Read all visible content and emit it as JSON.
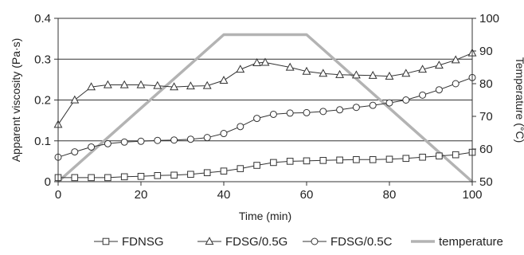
{
  "chart_data": {
    "type": "line",
    "xlabel": "Time (min)",
    "ylabel": "Apparent viscosity (Pa·s)",
    "y2label": "Temperature (°C)",
    "xlim": [
      0,
      100
    ],
    "ylim": [
      0,
      0.4
    ],
    "y2lim": [
      50,
      100
    ],
    "x_ticks": [
      0,
      20,
      40,
      60,
      80,
      100
    ],
    "y_ticks": [
      0,
      0.1,
      0.2,
      0.3,
      0.4
    ],
    "y_tick_labels": [
      "0",
      "0.1",
      "0.2",
      "0.3",
      "0.4"
    ],
    "y2_ticks": [
      50,
      60,
      70,
      80,
      90,
      100
    ],
    "grid": "horizontal",
    "legend_position": "bottom",
    "series": [
      {
        "name": "FDNSG",
        "axis": "left",
        "marker": "square",
        "color": "#333333",
        "x": [
          0,
          4,
          8,
          12,
          16,
          20,
          24,
          28,
          32,
          36,
          40,
          44,
          48,
          52,
          56,
          60,
          64,
          68,
          72,
          76,
          80,
          84,
          88,
          92,
          96,
          100
        ],
        "y": [
          0.01,
          0.01,
          0.01,
          0.01,
          0.012,
          0.013,
          0.015,
          0.016,
          0.018,
          0.022,
          0.026,
          0.032,
          0.04,
          0.047,
          0.05,
          0.051,
          0.052,
          0.053,
          0.054,
          0.054,
          0.055,
          0.057,
          0.06,
          0.063,
          0.066,
          0.072
        ]
      },
      {
        "name": "FDSG/0.5G",
        "axis": "left",
        "marker": "triangle",
        "color": "#333333",
        "x": [
          0,
          4,
          8,
          12,
          16,
          20,
          24,
          28,
          32,
          36,
          40,
          44,
          48,
          50,
          56,
          60,
          64,
          68,
          72,
          76,
          80,
          84,
          88,
          92,
          96,
          100
        ],
        "y": [
          0.14,
          0.2,
          0.232,
          0.237,
          0.237,
          0.237,
          0.235,
          0.232,
          0.234,
          0.235,
          0.248,
          0.275,
          0.291,
          0.292,
          0.28,
          0.27,
          0.265,
          0.262,
          0.261,
          0.26,
          0.258,
          0.265,
          0.275,
          0.285,
          0.298,
          0.315
        ]
      },
      {
        "name": "FDSG/0.5C",
        "axis": "left",
        "marker": "circle",
        "color": "#333333",
        "x": [
          0,
          4,
          8,
          12,
          16,
          20,
          24,
          28,
          32,
          36,
          40,
          44,
          48,
          52,
          56,
          60,
          64,
          68,
          72,
          76,
          80,
          84,
          88,
          92,
          96,
          100
        ],
        "y": [
          0.06,
          0.073,
          0.085,
          0.093,
          0.097,
          0.099,
          0.101,
          0.102,
          0.104,
          0.108,
          0.118,
          0.135,
          0.155,
          0.165,
          0.168,
          0.169,
          0.172,
          0.176,
          0.182,
          0.187,
          0.193,
          0.2,
          0.212,
          0.225,
          0.24,
          0.255
        ]
      },
      {
        "name": "temperature",
        "axis": "right",
        "marker": "none",
        "color": "#b3b3b3",
        "x": [
          0,
          40,
          60,
          100
        ],
        "y": [
          50,
          95,
          95,
          50
        ]
      }
    ]
  }
}
